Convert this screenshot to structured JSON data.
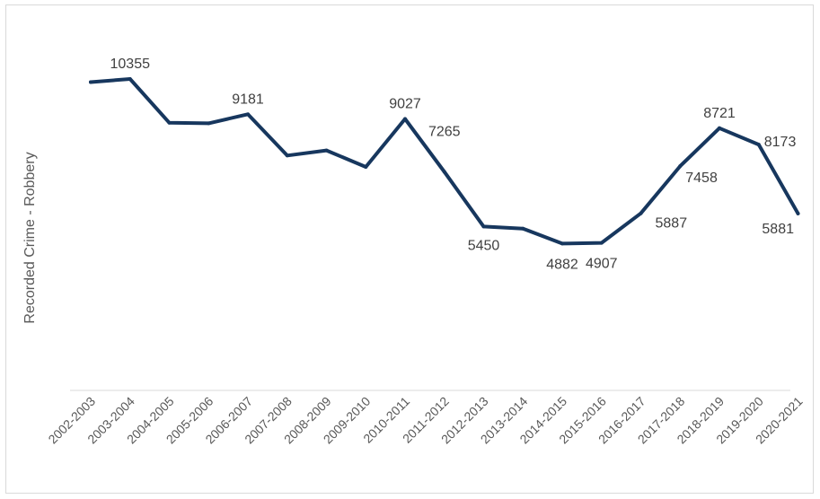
{
  "chart_data": {
    "type": "line",
    "title": "",
    "xlabel": "",
    "ylabel": "Recorded Crime - Robbery",
    "categories": [
      "2002-2003",
      "2003-2004",
      "2004-2005",
      "2005-2006",
      "2006-2007",
      "2007-2008",
      "2008-2009",
      "2009-2010",
      "2010-2011",
      "2011-2012",
      "2012-2013",
      "2013-2014",
      "2014-2015",
      "2015-2016",
      "2016-2017",
      "2017-2018",
      "2018-2019",
      "2019-2020",
      "2020-2021"
    ],
    "series": [
      {
        "values": [
          10250,
          10355,
          8900,
          8880,
          9181,
          7810,
          7980,
          7430,
          9027,
          7265,
          5450,
          5380,
          4882,
          4907,
          5887,
          7458,
          8721,
          8173,
          5881
        ],
        "labels": [
          "",
          "10355",
          "",
          "",
          "9181",
          "",
          "",
          "",
          "9027",
          "7265",
          "5450",
          "",
          "4882",
          "4907",
          "5887",
          "7458",
          "8721",
          "8173",
          "5881"
        ]
      }
    ],
    "ylim": [
      0,
      13000
    ],
    "grid": false,
    "legend": "none",
    "line_color": "#17375e",
    "axis_color": "#d9d9d9"
  }
}
